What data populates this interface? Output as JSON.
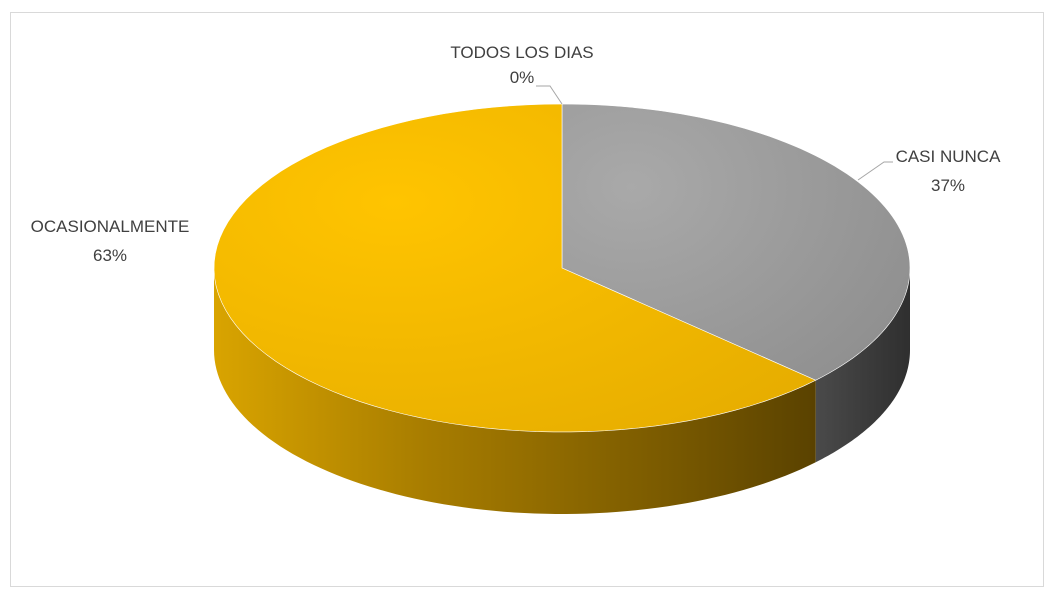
{
  "chart_data": {
    "type": "pie",
    "style": "3d",
    "title": "",
    "series": [
      {
        "label": "TODOS LOS DIAS",
        "value": 0,
        "value_label": "0%",
        "color": "#7f7f7f"
      },
      {
        "label": "CASI NUNCA",
        "value": 37,
        "value_label": "37%",
        "color": "#a5a5a5"
      },
      {
        "label": "OCASIONALMENTE",
        "value": 63,
        "value_label": "63%",
        "color": "#ffc000"
      }
    ],
    "legend": "none",
    "labels": "outside-with-leader-lines"
  }
}
